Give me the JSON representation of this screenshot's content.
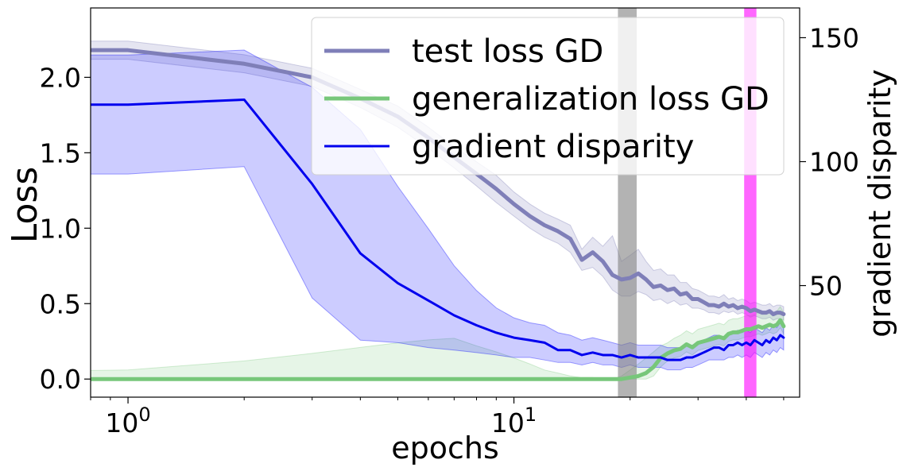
{
  "chart_data": {
    "type": "line",
    "xlabel": "epochs",
    "ylabel": "Loss",
    "y2label": "gradient disparity",
    "x_scale": "log",
    "xlim": [
      0.8,
      55
    ],
    "ylim": [
      -0.12,
      2.46
    ],
    "y2lim": [
      5,
      162
    ],
    "grid": false,
    "legend_position": "top-right",
    "x_ticks": [
      {
        "value": 1,
        "base": "10",
        "exp": "0"
      },
      {
        "value": 10,
        "base": "10",
        "exp": "1"
      }
    ],
    "y_ticks": [
      {
        "value": 0.0,
        "label": "0.0"
      },
      {
        "value": 0.5,
        "label": "0.5"
      },
      {
        "value": 1.0,
        "label": "1.0"
      },
      {
        "value": 1.5,
        "label": "1.5"
      },
      {
        "value": 2.0,
        "label": "2.0"
      }
    ],
    "y2_ticks": [
      {
        "value": 50,
        "label": "50"
      },
      {
        "value": 100,
        "label": "100"
      },
      {
        "value": 150,
        "label": "150"
      }
    ],
    "series": [
      {
        "name": "test loss GD",
        "axis": "left",
        "color": "#7f7fb8",
        "band_color": "#7f7fb8",
        "band_opacity": 0.2,
        "x": [
          0.5,
          1,
          2,
          3,
          4,
          5,
          6,
          7,
          8,
          9,
          10,
          11,
          12,
          13,
          14,
          15,
          16,
          17,
          18,
          19,
          20,
          21,
          22,
          23,
          24,
          25,
          26,
          27,
          28,
          29,
          30,
          31,
          32,
          33,
          34,
          35,
          36,
          37,
          38,
          39,
          40,
          41,
          42,
          43,
          44,
          45,
          46,
          47,
          48,
          49,
          50
        ],
        "y": [
          2.18,
          2.18,
          2.09,
          2.0,
          1.86,
          1.74,
          1.6,
          1.47,
          1.36,
          1.26,
          1.16,
          1.08,
          1.02,
          0.98,
          0.93,
          0.79,
          0.84,
          0.78,
          0.69,
          0.66,
          0.67,
          0.7,
          0.66,
          0.61,
          0.62,
          0.59,
          0.6,
          0.56,
          0.57,
          0.53,
          0.53,
          0.51,
          0.49,
          0.49,
          0.48,
          0.5,
          0.48,
          0.49,
          0.47,
          0.48,
          0.47,
          0.45,
          0.46,
          0.45,
          0.44,
          0.44,
          0.45,
          0.43,
          0.44,
          0.44,
          0.43
        ],
        "lower": [
          2.12,
          2.12,
          2.03,
          1.94,
          1.8,
          1.67,
          1.53,
          1.4,
          1.28,
          1.17,
          1.08,
          1.0,
          0.94,
          0.9,
          0.84,
          0.72,
          0.74,
          0.68,
          0.59,
          0.55,
          0.55,
          0.58,
          0.56,
          0.52,
          0.53,
          0.5,
          0.52,
          0.49,
          0.5,
          0.47,
          0.47,
          0.46,
          0.44,
          0.44,
          0.43,
          0.45,
          0.44,
          0.45,
          0.43,
          0.44,
          0.43,
          0.41,
          0.42,
          0.41,
          0.4,
          0.4,
          0.41,
          0.39,
          0.4,
          0.4,
          0.39
        ],
        "upper": [
          2.24,
          2.24,
          2.15,
          2.06,
          1.92,
          1.81,
          1.67,
          1.54,
          1.44,
          1.35,
          1.24,
          1.16,
          1.1,
          1.06,
          1.02,
          0.86,
          0.94,
          0.88,
          0.95,
          0.78,
          0.82,
          0.86,
          0.78,
          0.72,
          0.73,
          0.69,
          0.69,
          0.64,
          0.64,
          0.6,
          0.59,
          0.57,
          0.55,
          0.55,
          0.54,
          0.56,
          0.53,
          0.54,
          0.52,
          0.53,
          0.52,
          0.5,
          0.51,
          0.5,
          0.49,
          0.49,
          0.5,
          0.48,
          0.49,
          0.49,
          0.48
        ]
      },
      {
        "name": "generalization loss GD",
        "axis": "left",
        "color": "#77c77a",
        "band_color": "#77c77a",
        "band_opacity": 0.18,
        "x": [
          0.5,
          1,
          2,
          3,
          4,
          5,
          6,
          7,
          8,
          9,
          10,
          11,
          12,
          13,
          14,
          15,
          16,
          17,
          18,
          19,
          20,
          21,
          22,
          23,
          24,
          25,
          26,
          27,
          28,
          29,
          30,
          31,
          32,
          33,
          34,
          35,
          36,
          37,
          38,
          39,
          40,
          41,
          42,
          43,
          44,
          45,
          46,
          47,
          48,
          49,
          50
        ],
        "y": [
          0.0,
          0.0,
          0.0,
          0.0,
          0.0,
          0.0,
          0.0,
          0.0,
          0.0,
          0.0,
          0.0,
          0.0,
          0.0,
          0.0,
          0.0,
          0.0,
          0.0,
          0.0,
          0.0,
          0.0,
          0.01,
          0.02,
          0.04,
          0.08,
          0.14,
          0.17,
          0.19,
          0.2,
          0.23,
          0.21,
          0.24,
          0.25,
          0.26,
          0.27,
          0.28,
          0.27,
          0.3,
          0.31,
          0.31,
          0.32,
          0.33,
          0.33,
          0.34,
          0.35,
          0.34,
          0.35,
          0.36,
          0.35,
          0.36,
          0.39,
          0.35
        ],
        "lower": [
          0.0,
          0.0,
          0.0,
          0.0,
          0.0,
          0.0,
          0.0,
          0.0,
          0.0,
          0.0,
          0.0,
          0.0,
          0.0,
          0.0,
          0.0,
          0.0,
          0.0,
          0.0,
          0.0,
          0.0,
          0.0,
          0.0,
          0.0,
          0.02,
          0.08,
          0.12,
          0.14,
          0.15,
          0.18,
          0.16,
          0.19,
          0.2,
          0.21,
          0.22,
          0.23,
          0.22,
          0.25,
          0.26,
          0.26,
          0.27,
          0.28,
          0.28,
          0.29,
          0.3,
          0.29,
          0.3,
          0.31,
          0.3,
          0.31,
          0.34,
          0.3
        ],
        "upper": [
          0.05,
          0.06,
          0.12,
          0.17,
          0.21,
          0.24,
          0.26,
          0.27,
          0.22,
          0.18,
          0.14,
          0.1,
          0.06,
          0.04,
          0.02,
          0.01,
          0.01,
          0.0,
          0.0,
          0.02,
          0.06,
          0.1,
          0.14,
          0.18,
          0.22,
          0.24,
          0.27,
          0.29,
          0.32,
          0.3,
          0.33,
          0.34,
          0.35,
          0.36,
          0.37,
          0.36,
          0.39,
          0.4,
          0.4,
          0.41,
          0.42,
          0.42,
          0.43,
          0.44,
          0.43,
          0.44,
          0.45,
          0.44,
          0.45,
          0.48,
          0.44
        ]
      },
      {
        "name": "gradient disparity",
        "axis": "right",
        "color": "#0000ee",
        "band_color": "#0000ff",
        "band_opacity": 0.2,
        "x": [
          0.5,
          1,
          2,
          3,
          4,
          5,
          6,
          7,
          8,
          9,
          10,
          11,
          12,
          13,
          14,
          15,
          16,
          17,
          18,
          19,
          20,
          21,
          22,
          23,
          24,
          25,
          26,
          27,
          28,
          29,
          30,
          31,
          32,
          33,
          34,
          35,
          36,
          37,
          38,
          39,
          40,
          41,
          42,
          43,
          44,
          45,
          46,
          47,
          48,
          49,
          50
        ],
        "y": [
          123,
          123,
          125,
          91,
          63,
          51,
          44,
          38,
          34,
          31,
          29,
          28,
          27,
          24,
          24,
          22,
          23,
          22,
          22,
          21,
          22,
          21,
          21,
          21,
          21,
          20,
          20,
          20,
          21,
          21,
          22,
          23,
          24,
          25,
          25,
          24,
          26,
          26,
          27,
          26,
          27,
          26,
          28,
          27,
          26,
          28,
          27,
          29,
          28,
          30,
          29
        ],
        "lower": [
          95,
          95,
          98,
          45,
          28,
          27,
          25,
          24,
          23,
          22,
          21,
          21,
          20,
          19,
          19,
          18,
          19,
          18,
          18,
          17,
          18,
          17,
          17,
          17,
          17,
          16,
          16,
          16,
          17,
          17,
          18,
          19,
          20,
          20,
          20,
          20,
          21,
          21,
          22,
          21,
          22,
          21,
          23,
          22,
          21,
          23,
          22,
          24,
          23,
          25,
          24
        ],
        "upper": [
          143,
          143,
          145,
          130,
          113,
          90,
          73,
          58,
          48,
          41,
          37,
          35,
          34,
          31,
          30,
          28,
          29,
          28,
          27,
          26,
          27,
          26,
          26,
          26,
          26,
          25,
          25,
          25,
          26,
          26,
          27,
          28,
          29,
          30,
          30,
          29,
          31,
          31,
          32,
          31,
          32,
          31,
          33,
          32,
          31,
          33,
          32,
          34,
          33,
          35,
          34
        ]
      }
    ],
    "vertical_bands": [
      {
        "from": 18.6,
        "to": 20.8,
        "color": "#808080",
        "opacity": 0.6
      },
      {
        "from": 39.5,
        "to": 42.5,
        "color": "#ff00ff",
        "opacity": 0.6
      }
    ]
  }
}
